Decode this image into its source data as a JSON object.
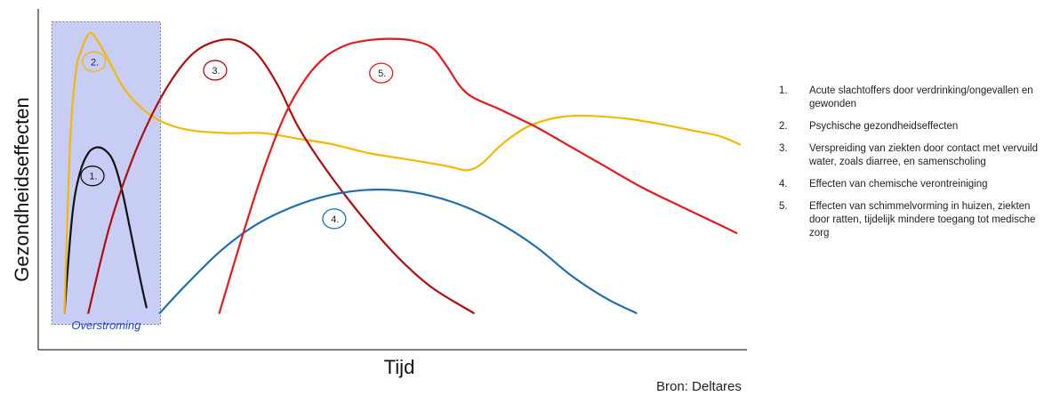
{
  "chart_data": {
    "type": "line",
    "xlabel": "Tijd",
    "ylabel": "Gezondheidseffecten",
    "annotation": "Overstroming",
    "source": "Bron: Deltares",
    "grid": false,
    "legend_position": "right",
    "xlim": [
      0,
      100
    ],
    "ylim": [
      0,
      100
    ],
    "series": [
      {
        "label": "1.",
        "color": "#111111",
        "x": [
          2.6,
          3.7,
          4.8,
          6.0,
          7.2,
          8.4,
          9.6,
          10.8,
          12.0,
          13.4,
          14.3
        ],
        "y": [
          1,
          35,
          50,
          57,
          59,
          58,
          54,
          44,
          30,
          13,
          3
        ]
      },
      {
        "label": "2.",
        "color": "#f5b800",
        "x": [
          2.6,
          3.4,
          4.2,
          5.0,
          6.2,
          7.4,
          9.0,
          11.0,
          13.5,
          16.5,
          20.5,
          26,
          31,
          36,
          41,
          46,
          51,
          56,
          58,
          60,
          62,
          65,
          68.5,
          72,
          75,
          78,
          83,
          88,
          92,
          96,
          99
        ],
        "y": [
          1,
          60,
          85,
          93,
          99,
          96,
          89,
          80,
          73,
          68,
          65,
          64,
          64,
          62,
          60,
          57,
          55,
          53,
          52,
          51,
          53,
          60,
          66,
          69,
          70,
          70,
          69,
          67,
          65,
          63,
          60
        ]
      },
      {
        "label": "3.",
        "color": "#b00d0d",
        "x": [
          6,
          9,
          12,
          15,
          18,
          21,
          24,
          27,
          30,
          33,
          36,
          40,
          45,
          50,
          55,
          61
        ],
        "y": [
          1,
          31,
          53,
          70,
          83,
          92,
          96,
          96.5,
          92,
          81,
          66,
          51,
          35,
          21,
          10,
          1
        ]
      },
      {
        "label": "4.",
        "color": "#1f6fad",
        "x": [
          16.2,
          20,
          25,
          30,
          35,
          40,
          45,
          50,
          55,
          60,
          65,
          70,
          75,
          80,
          84.2
        ],
        "y": [
          1,
          11,
          23,
          32,
          38,
          42,
          44,
          44,
          42,
          38,
          32,
          24,
          14,
          6,
          1
        ]
      },
      {
        "label": "5.",
        "color": "#e41a1a",
        "x": [
          24.7,
          28,
          31,
          34,
          37,
          40,
          43,
          46,
          49,
          52,
          55,
          57,
          60,
          65,
          70,
          75,
          80,
          85,
          90,
          96,
          98.5
        ],
        "y": [
          1,
          28,
          51,
          70,
          83,
          91,
          95,
          96.5,
          97,
          96.5,
          94,
          88,
          78,
          72,
          66,
          59,
          52,
          45,
          39,
          32,
          29
        ]
      }
    ],
    "labels": [
      {
        "text": "1.",
        "series": 0,
        "x": 6.6,
        "y": 49
      },
      {
        "text": "2.",
        "series": 1,
        "x": 6.8,
        "y": 89
      },
      {
        "text": "3.",
        "series": 2,
        "x": 24.1,
        "y": 86
      },
      {
        "text": "4.",
        "series": 3,
        "x": 41.1,
        "y": 34
      },
      {
        "text": "5.",
        "series": 4,
        "x": 47.8,
        "y": 85
      }
    ],
    "shaded_region": {
      "x": [
        0.8,
        16.3
      ],
      "y": [
        -3,
        103
      ],
      "label": "Overstroming"
    }
  },
  "legend": [
    {
      "num": "1.",
      "text": "Acute slachtoffers door verdrinking/ongevallen en gewonden"
    },
    {
      "num": "2.",
      "text": "Psychische gezondheidseffecten"
    },
    {
      "num": "3.",
      "text": "Verspreiding van ziekten door contact met vervuild water, zoals diarree, en samenscholing"
    },
    {
      "num": "4.",
      "text": "Effecten van chemische verontreiniging"
    },
    {
      "num": "5.",
      "text": "Effecten van schimmelvorming in huizen, ziekten door ratten,  tijdelijk mindere toegang tot medische zorg"
    }
  ]
}
